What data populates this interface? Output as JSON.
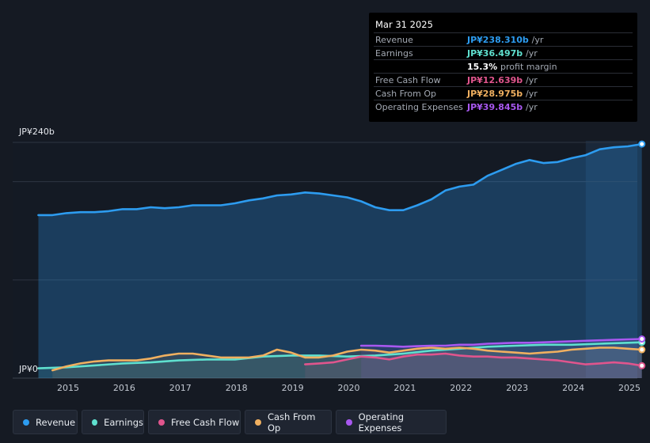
{
  "tooltip": {
    "date": "Mar 31 2025",
    "rows": [
      {
        "label": "Revenue",
        "value": "JP¥238.310b",
        "unit": "/yr",
        "color": "#2d9cf0"
      },
      {
        "label": "Earnings",
        "value": "JP¥36.497b",
        "unit": "/yr",
        "color": "#5fe0cf"
      },
      {
        "label": "",
        "value": "15.3%",
        "unit": "profit margin",
        "color": "#ffffff"
      },
      {
        "label": "Free Cash Flow",
        "value": "JP¥12.639b",
        "unit": "/yr",
        "color": "#e0558d"
      },
      {
        "label": "Cash From Op",
        "value": "JP¥28.975b",
        "unit": "/yr",
        "color": "#f0b060"
      },
      {
        "label": "Operating Expenses",
        "value": "JP¥39.845b",
        "unit": "/yr",
        "color": "#a858f0"
      }
    ]
  },
  "chart_data": {
    "type": "area",
    "title": "",
    "ylabel": "",
    "xlabel": "",
    "y_tick_labels": {
      "top": "JP¥240b",
      "bottom": "JP¥0"
    },
    "ylim": [
      0,
      240
    ],
    "xlim": [
      2014.5,
      2025.25
    ],
    "x_ticks": [
      "2015",
      "2016",
      "2017",
      "2018",
      "2019",
      "2020",
      "2021",
      "2022",
      "2023",
      "2024",
      "2025"
    ],
    "series": [
      {
        "name": "Revenue",
        "color": "#2d9cf0",
        "fill": true,
        "x": [
          2014.5,
          2014.75,
          2015,
          2015.25,
          2015.5,
          2015.75,
          2016,
          2016.25,
          2016.5,
          2016.75,
          2017,
          2017.25,
          2017.5,
          2017.75,
          2018,
          2018.25,
          2018.5,
          2018.75,
          2019,
          2019.25,
          2019.5,
          2019.75,
          2020,
          2020.25,
          2020.5,
          2020.75,
          2021,
          2021.25,
          2021.5,
          2021.75,
          2022,
          2022.25,
          2022.5,
          2022.75,
          2023,
          2023.25,
          2023.5,
          2023.75,
          2024,
          2024.25,
          2024.5,
          2024.75,
          2025,
          2025.25
        ],
        "values": [
          166,
          166,
          168,
          169,
          169,
          170,
          172,
          172,
          174,
          173,
          174,
          176,
          176,
          176,
          178,
          181,
          183,
          186,
          187,
          189,
          188,
          186,
          184,
          180,
          174,
          171,
          171,
          176,
          182,
          191,
          195,
          197,
          206,
          212,
          218,
          222,
          219,
          220,
          224,
          227,
          233,
          235,
          236,
          238.31
        ]
      },
      {
        "name": "Earnings",
        "color": "#5fe0cf",
        "fill": false,
        "x": [
          2014.5,
          2015,
          2015.5,
          2016,
          2016.5,
          2017,
          2017.5,
          2018,
          2018.5,
          2019,
          2019.5,
          2020,
          2020.5,
          2021,
          2021.5,
          2022,
          2022.5,
          2023,
          2023.5,
          2024,
          2024.5,
          2025,
          2025.25
        ],
        "values": [
          10,
          11,
          13,
          15,
          16,
          18,
          19,
          19,
          22,
          23,
          23,
          22,
          23,
          25,
          28,
          30,
          32,
          33,
          34,
          34,
          35,
          36,
          36.497
        ]
      },
      {
        "name": "Free Cash Flow",
        "color": "#e0558d",
        "fill": false,
        "x": [
          2019.25,
          2019.5,
          2019.75,
          2020,
          2020.25,
          2020.5,
          2020.75,
          2021,
          2021.25,
          2021.5,
          2021.75,
          2022,
          2022.25,
          2022.5,
          2022.75,
          2023,
          2023.25,
          2023.5,
          2023.75,
          2024,
          2024.25,
          2024.5,
          2024.75,
          2025,
          2025.25
        ],
        "values": [
          14,
          15,
          16,
          19,
          22,
          21,
          19,
          22,
          24,
          24,
          25,
          23,
          22,
          22,
          21,
          21,
          20,
          19,
          18,
          16,
          14,
          15,
          16,
          15,
          12.639
        ]
      },
      {
        "name": "Cash From Op",
        "color": "#f0b060",
        "fill": false,
        "x": [
          2014.75,
          2015,
          2015.25,
          2015.5,
          2015.75,
          2016,
          2016.25,
          2016.5,
          2016.75,
          2017,
          2017.25,
          2017.5,
          2017.75,
          2018,
          2018.25,
          2018.5,
          2018.75,
          2019,
          2019.25,
          2019.5,
          2019.75,
          2020,
          2020.25,
          2020.5,
          2020.75,
          2021,
          2021.25,
          2021.5,
          2021.75,
          2022,
          2022.25,
          2022.5,
          2022.75,
          2023,
          2023.25,
          2023.5,
          2023.75,
          2024,
          2024.25,
          2024.5,
          2024.75,
          2025,
          2025.25
        ],
        "values": [
          8,
          12,
          15,
          17,
          18,
          18,
          18,
          20,
          23,
          25,
          25,
          23,
          21,
          21,
          21,
          23,
          29,
          26,
          21,
          21,
          23,
          27,
          29,
          28,
          26,
          28,
          30,
          31,
          30,
          31,
          30,
          28,
          27,
          26,
          25,
          26,
          27,
          29,
          30,
          31,
          31,
          30,
          28.975
        ]
      },
      {
        "name": "Operating Expenses",
        "color": "#a858f0",
        "fill": false,
        "x": [
          2020.25,
          2020.5,
          2020.75,
          2021,
          2021.25,
          2021.5,
          2021.75,
          2022,
          2022.25,
          2022.5,
          2022.75,
          2023,
          2023.25,
          2023.5,
          2023.75,
          2024,
          2024.25,
          2024.5,
          2024.75,
          2025,
          2025.25
        ],
        "values": [
          33,
          33,
          32.5,
          32,
          32.5,
          33,
          33,
          34,
          34,
          35,
          35.5,
          36,
          36,
          36.5,
          37,
          37.5,
          38,
          38.5,
          39,
          39.5,
          39.845
        ]
      }
    ]
  },
  "legend": [
    {
      "label": "Revenue",
      "color": "#2d9cf0"
    },
    {
      "label": "Earnings",
      "color": "#5fe0cf"
    },
    {
      "label": "Free Cash Flow",
      "color": "#e0558d"
    },
    {
      "label": "Cash From Op",
      "color": "#f0b060"
    },
    {
      "label": "Operating Expenses",
      "color": "#a858f0"
    }
  ]
}
